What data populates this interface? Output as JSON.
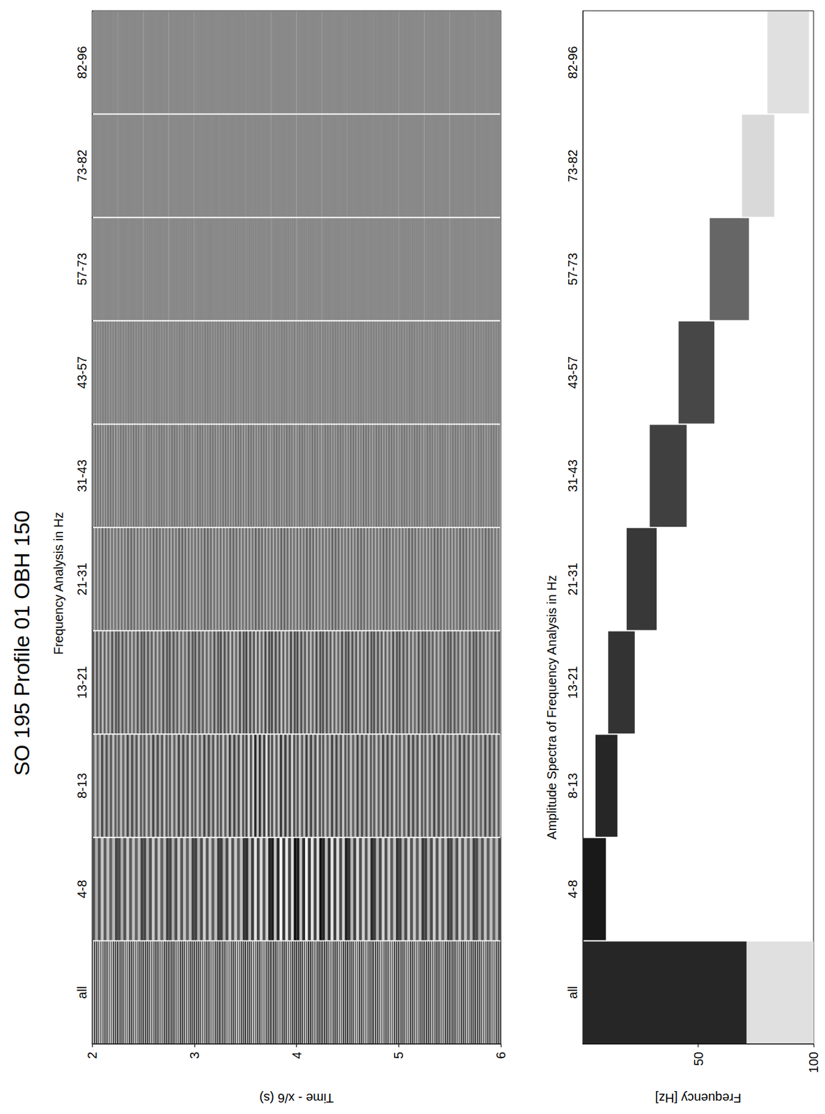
{
  "title": "SO 195 Profile 01 OBH 150",
  "chart_data": [
    {
      "type": "heatmap",
      "xlabel": "Frequency Analysis in Hz",
      "ylabel": "Time - x/6 (s)",
      "categories": [
        "all",
        "4-8",
        "8-13",
        "13-21",
        "21-31",
        "31-43",
        "43-57",
        "57-73",
        "73-82",
        "82-96"
      ],
      "ylim": [
        2,
        6
      ],
      "yticks": [
        2,
        3,
        4,
        5,
        6
      ],
      "time_bins": [
        2,
        2.25,
        2.5,
        2.75,
        3,
        3.25,
        3.5,
        3.75,
        4,
        4.25,
        4.5,
        4.75,
        5,
        5.25,
        5.5,
        5.75,
        6
      ],
      "amplitude": [
        [
          0.9,
          0.9,
          0.9,
          0.9,
          0.9,
          0.92,
          0.95,
          1,
          1,
          0.98,
          0.95,
          0.92,
          0.9,
          0.9,
          0.9,
          0.9
        ],
        [
          0.5,
          0.52,
          0.55,
          0.55,
          0.58,
          0.6,
          0.75,
          0.9,
          0.88,
          0.8,
          0.68,
          0.62,
          0.6,
          0.58,
          0.55,
          0.5
        ],
        [
          0.45,
          0.48,
          0.5,
          0.5,
          0.5,
          0.55,
          0.72,
          0.62,
          0.55,
          0.52,
          0.5,
          0.5,
          0.5,
          0.48,
          0.46,
          0.45
        ],
        [
          0.4,
          0.4,
          0.42,
          0.42,
          0.42,
          0.45,
          0.5,
          0.52,
          0.5,
          0.46,
          0.45,
          0.43,
          0.42,
          0.4,
          0.4,
          0.38
        ],
        [
          0.3,
          0.3,
          0.3,
          0.32,
          0.32,
          0.32,
          0.33,
          0.34,
          0.33,
          0.32,
          0.32,
          0.3,
          0.3,
          0.3,
          0.3,
          0.28
        ],
        [
          0.2,
          0.2,
          0.2,
          0.22,
          0.22,
          0.22,
          0.22,
          0.23,
          0.22,
          0.22,
          0.22,
          0.2,
          0.2,
          0.2,
          0.2,
          0.18
        ],
        [
          0.1,
          0.1,
          0.1,
          0.1,
          0.11,
          0.11,
          0.11,
          0.12,
          0.11,
          0.11,
          0.1,
          0.1,
          0.1,
          0.1,
          0.1,
          0.09
        ],
        [
          0.04,
          0.04,
          0.04,
          0.04,
          0.04,
          0.04,
          0.04,
          0.05,
          0.04,
          0.04,
          0.04,
          0.04,
          0.04,
          0.04,
          0.04,
          0.04
        ],
        [
          0.02,
          0.02,
          0.02,
          0.02,
          0.02,
          0.02,
          0.02,
          0.02,
          0.02,
          0.02,
          0.02,
          0.02,
          0.02,
          0.02,
          0.02,
          0.02
        ],
        [
          0.02,
          0.02,
          0.02,
          0.02,
          0.02,
          0.02,
          0.02,
          0.02,
          0.02,
          0.02,
          0.02,
          0.02,
          0.02,
          0.02,
          0.02,
          0.02
        ]
      ]
    },
    {
      "type": "range",
      "xlabel": "Amplitude Spectra of Frequency Analysis in Hz",
      "ylabel": "Frequency [Hz]",
      "categories": [
        "all",
        "4-8",
        "8-13",
        "13-21",
        "21-31",
        "31-43",
        "43-57",
        "57-73",
        "73-82",
        "82-96"
      ],
      "ylim": [
        0,
        100
      ],
      "yticks": [
        50,
        100
      ],
      "ranges": [
        {
          "category": "all",
          "low": 0,
          "high": 71,
          "amplitude": 0.85
        },
        {
          "category": "all",
          "low": 71,
          "high": 100,
          "amplitude": 0.12
        },
        {
          "category": "4-8",
          "low": 0,
          "high": 10,
          "amplitude": 0.9
        },
        {
          "category": "8-13",
          "low": 5.5,
          "high": 15,
          "amplitude": 0.85
        },
        {
          "category": "13-21",
          "low": 11,
          "high": 22.5,
          "amplitude": 0.8
        },
        {
          "category": "21-31",
          "low": 19,
          "high": 32,
          "amplitude": 0.78
        },
        {
          "category": "31-43",
          "low": 29,
          "high": 45,
          "amplitude": 0.75
        },
        {
          "category": "43-57",
          "low": 41.5,
          "high": 57,
          "amplitude": 0.72
        },
        {
          "category": "57-73",
          "low": 55,
          "high": 72,
          "amplitude": 0.6
        },
        {
          "category": "73-82",
          "low": 69,
          "high": 83,
          "amplitude": 0.15
        },
        {
          "category": "82-96",
          "low": 80,
          "high": 98,
          "amplitude": 0.12
        }
      ]
    }
  ]
}
